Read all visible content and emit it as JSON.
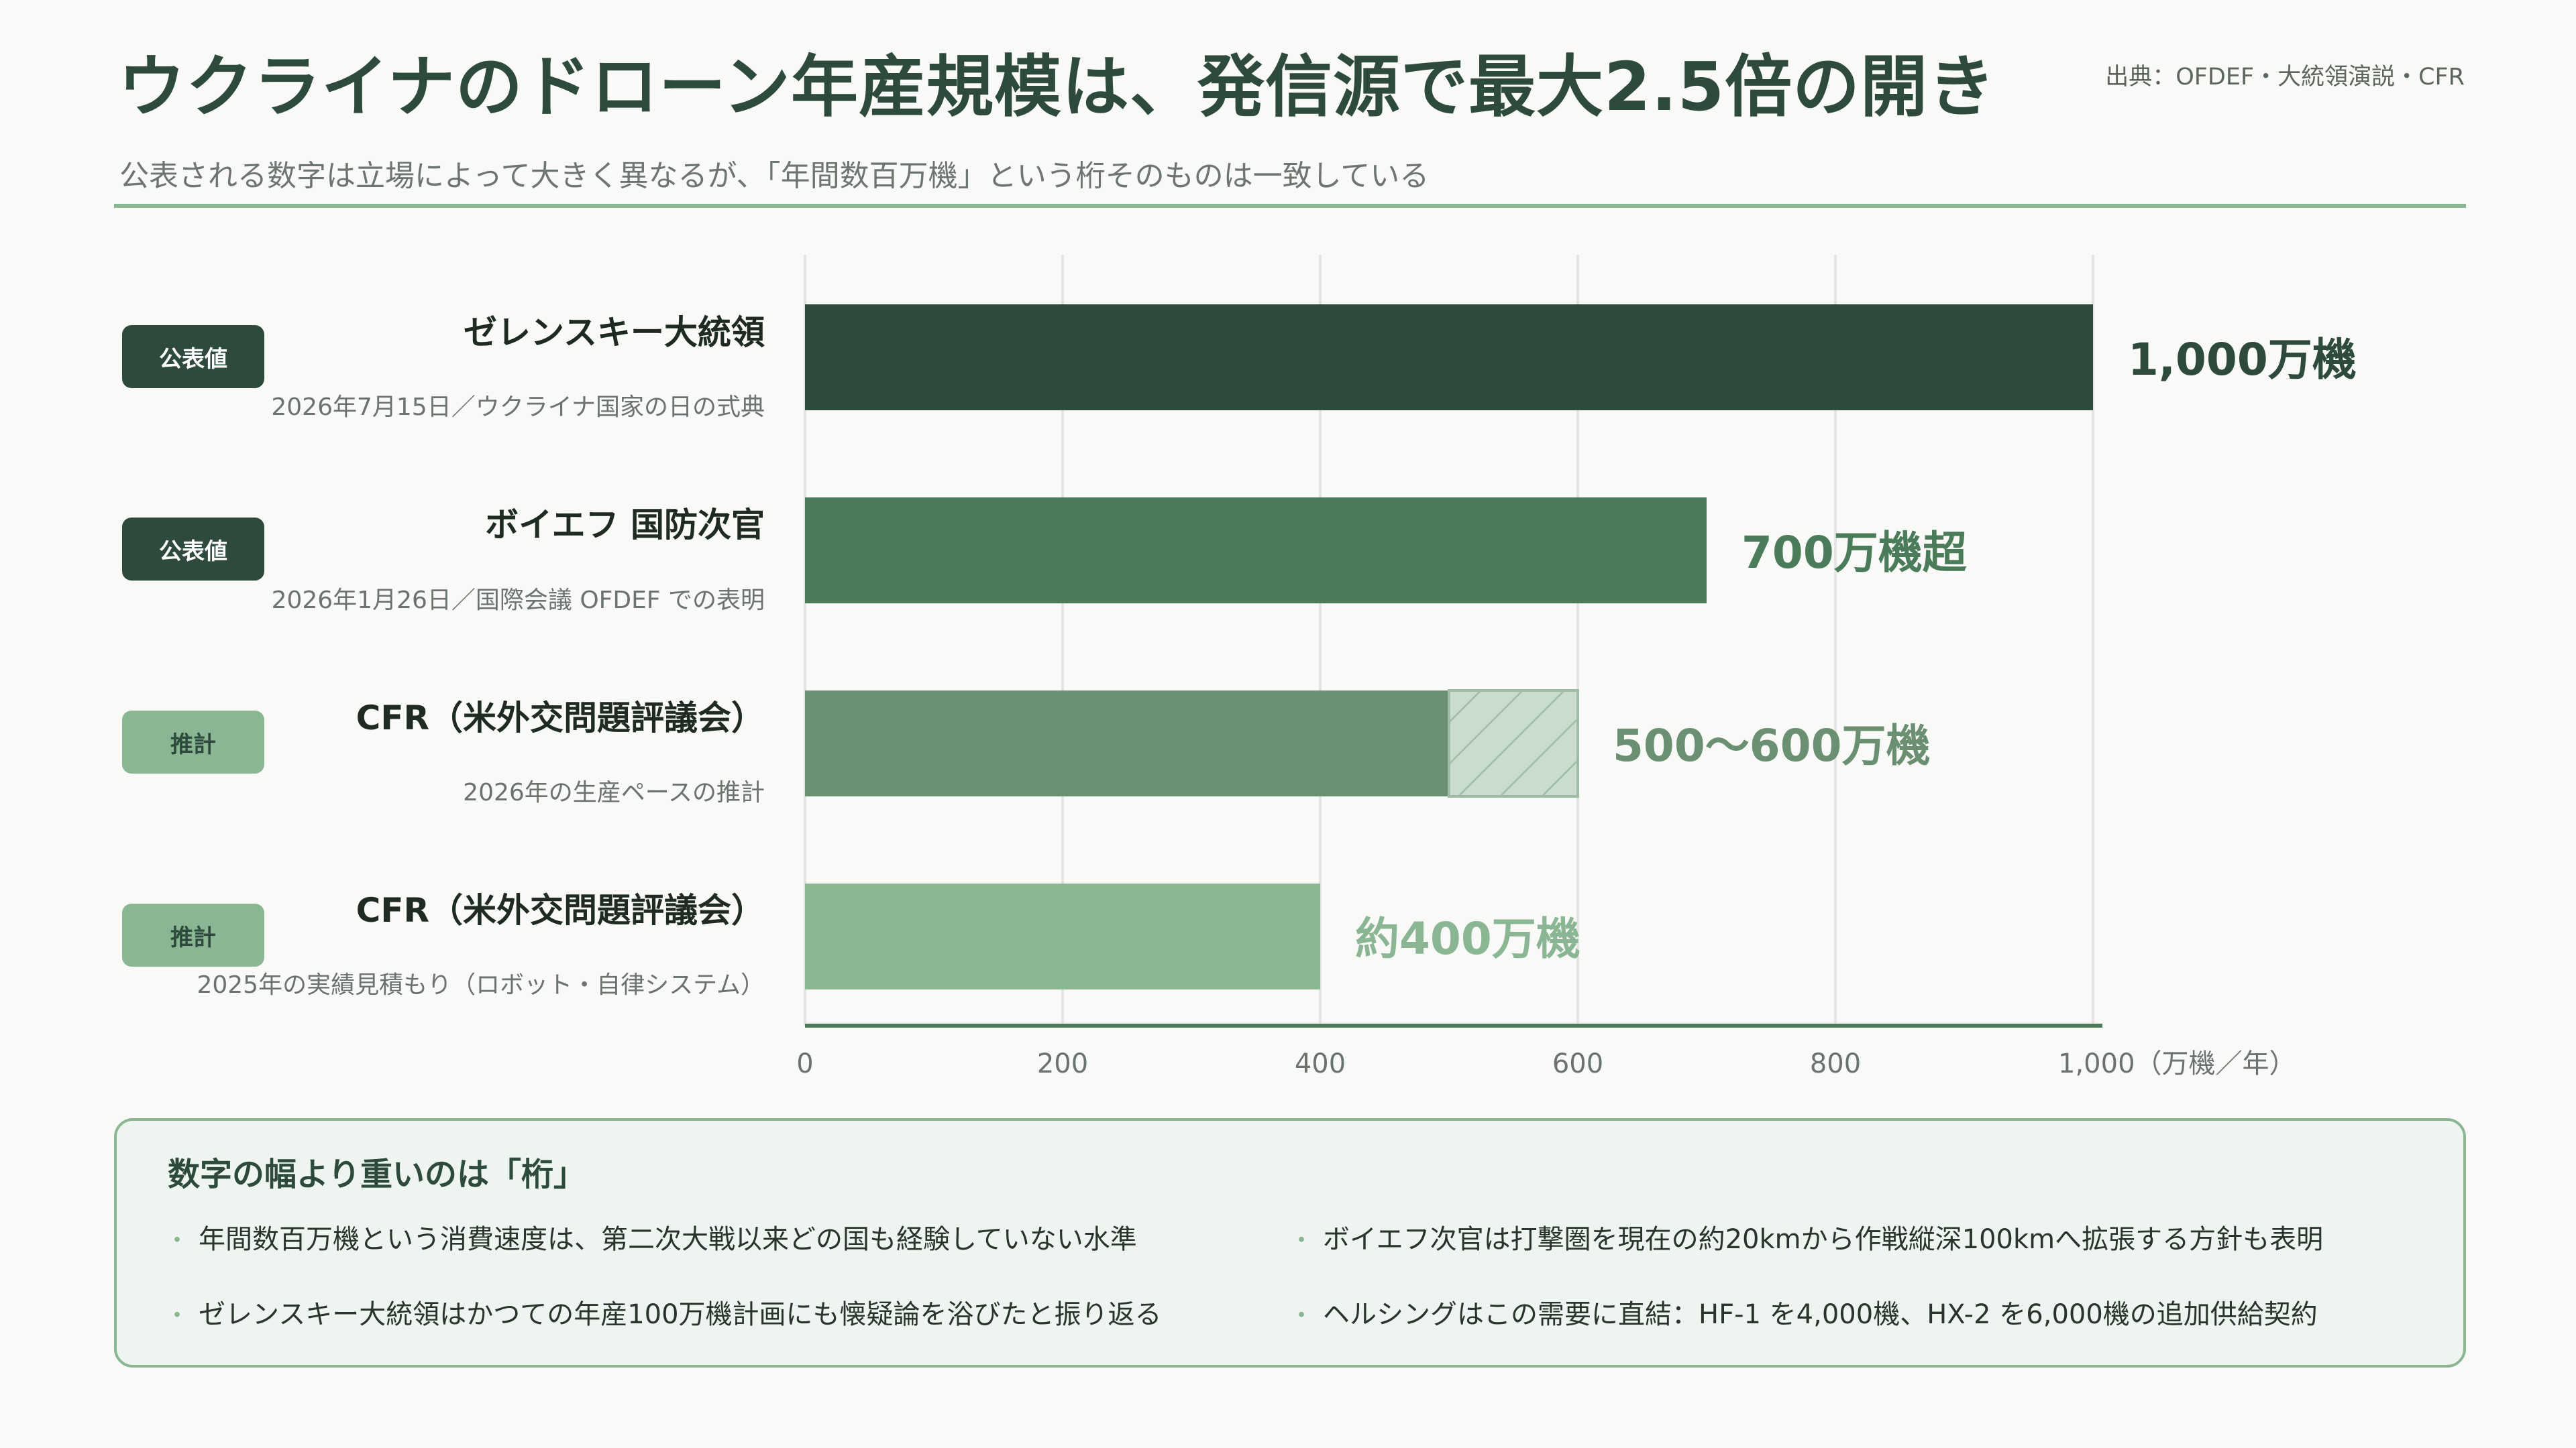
{
  "header": {
    "title": "ウクライナのドローン年産規模は、発信源で最大2.5倍の開き",
    "source": "出典：OFDEF・大統領演説・CFR",
    "subtitle": "公表される数字は立場によって大きく異なるが、「年間数百万機」という桁そのものは一致している"
  },
  "colors": {
    "dark_green": "#2d4a3d",
    "mid_green": "#4a7c59",
    "sage_green": "#6b8f71",
    "light_green": "#8bb694",
    "hatch_fill": "#c9dccd"
  },
  "rows": [
    {
      "badge": "公表値",
      "badge_style": "dark",
      "name": "ゼレンスキー大統領",
      "note": "2026年7月15日／ウクライナ国家の日の式典"
    },
    {
      "badge": "公表値",
      "badge_style": "dark",
      "name": "ボイエフ 国防次官",
      "note": "2026年1月26日／国際会議 OFDEF での表明"
    },
    {
      "badge": "推計",
      "badge_style": "light",
      "name": "CFR（米外交問題評議会）",
      "note": "2026年の生産ペースの推計"
    },
    {
      "badge": "推計",
      "badge_style": "light",
      "name": "CFR（米外交問題評議会）",
      "note": "2025年の実績見積もり（ロボット・自律システム）"
    }
  ],
  "chart_data": {
    "type": "bar",
    "orientation": "horizontal",
    "categories": [
      "ゼレンスキー大統領",
      "ボイエフ 国防次官",
      "CFR（米外交問題評議会）",
      "CFR（米外交問題評議会）"
    ],
    "values": [
      1000,
      700,
      500,
      400
    ],
    "range_upper": [
      null,
      null,
      600,
      null
    ],
    "value_labels": [
      "1,000万機",
      "700万機超",
      "500〜600万機",
      "約400万機"
    ],
    "bar_colors": [
      "#2d4a3d",
      "#4a7c59",
      "#6b8f71",
      "#8bb694"
    ],
    "label_colors": [
      "#2d4a3d",
      "#4a7c59",
      "#6b8f71",
      "#8bb694"
    ],
    "xlim": [
      0,
      1000
    ],
    "x_ticks": [
      0,
      200,
      400,
      600,
      800,
      1000
    ],
    "x_tick_labels": [
      "0",
      "200",
      "400",
      "600",
      "800",
      "1,000（万機／年）"
    ],
    "grid": true
  },
  "callout": {
    "title": "数字の幅より重いのは「桁」",
    "bullet": "・",
    "points": [
      "年間数百万機という消費速度は、第二次大戦以来どの国も経験していない水準",
      "ボイエフ次官は打撃圏を現在の約20kmから作戦縦深100kmへ拡張する方針も表明",
      "ゼレンスキー大統領はかつての年産100万機計画にも懐疑論を浴びたと振り返る",
      "ヘルシングはこの需要に直結：HF-1 を4,000機、HX-2 を6,000機の追加供給契約"
    ]
  }
}
